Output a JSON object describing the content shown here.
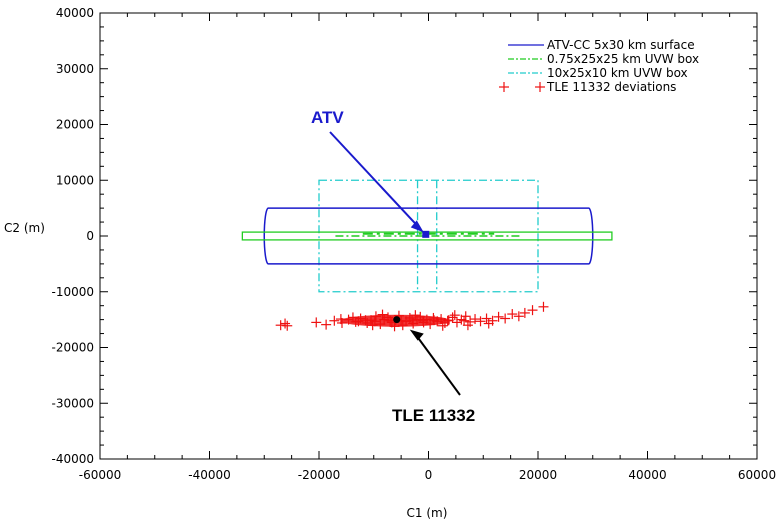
{
  "chart_data": {
    "type": "scatter",
    "title": "",
    "xlabel": "C1 (m)",
    "ylabel": "C2 (m)",
    "xlim": [
      -60000,
      60000
    ],
    "ylim": [
      -40000,
      40000
    ],
    "x_ticks": [
      -60000,
      -40000,
      -20000,
      0,
      20000,
      40000,
      60000
    ],
    "y_ticks": [
      -40000,
      -30000,
      -20000,
      -10000,
      0,
      10000,
      20000,
      30000,
      40000
    ],
    "x_tick_labels": [
      "-60000",
      "-40000",
      "-20000",
      "0",
      "20000",
      "40000",
      "60000"
    ],
    "y_tick_labels": [
      "-40000",
      "-30000",
      "-20000",
      "-10000",
      "0",
      "10000",
      "20000",
      "30000",
      "40000"
    ],
    "grid": false,
    "legend_position": "top-right",
    "series": [
      {
        "name": "ATV-CC 5x30 km surface",
        "style": "solid",
        "color": "#1a1acc",
        "shape": "rounded-rect",
        "x_range": [
          -30000,
          30000
        ],
        "y_range": [
          -5000,
          5000
        ]
      },
      {
        "name": "0.75x25x25 km UVW box",
        "style": "dash-dot",
        "color": "#22cc22",
        "shape": "rect",
        "x_range": [
          -34000,
          33500
        ],
        "y_range": [
          -700,
          700
        ]
      },
      {
        "name": "10x25x10 km UVW box",
        "style": "dash-dot",
        "color": "#22cccc",
        "shape": "rect",
        "x_range": [
          -20000,
          20000
        ],
        "y_range": [
          -10000,
          10000
        ],
        "inner_x": [
          -2000,
          1500
        ]
      },
      {
        "name": "TLE 11332 deviations",
        "style": "marker-plus",
        "color": "#ee1111",
        "points": [
          [
            -27000,
            -16000
          ],
          [
            -26200,
            -15700
          ],
          [
            -25800,
            -16100
          ],
          [
            -20500,
            -15500
          ],
          [
            -18700,
            -15900
          ],
          [
            -17200,
            -15200
          ],
          [
            -15800,
            -15600
          ],
          [
            -14600,
            -15000
          ],
          [
            -13300,
            -15400
          ],
          [
            -12400,
            -14800
          ],
          [
            -11200,
            -15600
          ],
          [
            -10500,
            -15100
          ],
          [
            -9600,
            -14400
          ],
          [
            -8800,
            -15800
          ],
          [
            -8100,
            -15000
          ],
          [
            -7400,
            -14600
          ],
          [
            -6700,
            -15500
          ],
          [
            -6000,
            -15100
          ],
          [
            -5400,
            -14300
          ],
          [
            -4700,
            -16000
          ],
          [
            -4100,
            -15300
          ],
          [
            -3400,
            -14700
          ],
          [
            -2800,
            -15700
          ],
          [
            -2100,
            -15000
          ],
          [
            -1500,
            -14500
          ],
          [
            -900,
            -15500
          ],
          [
            -300,
            -15000
          ],
          [
            300,
            -15800
          ],
          [
            900,
            -14700
          ],
          [
            1600,
            -15300
          ],
          [
            2300,
            -14900
          ],
          [
            3000,
            -15600
          ],
          [
            3700,
            -15100
          ],
          [
            4400,
            -14600
          ],
          [
            5200,
            -15500
          ],
          [
            6000,
            -15000
          ],
          [
            6800,
            -14400
          ],
          [
            7600,
            -15400
          ],
          [
            8500,
            -14900
          ],
          [
            9500,
            -15300
          ],
          [
            10600,
            -14800
          ],
          [
            11700,
            -15200
          ],
          [
            12800,
            -14500
          ],
          [
            14000,
            -14800
          ],
          [
            15300,
            -14000
          ],
          [
            16500,
            -14400
          ],
          [
            17600,
            -13800
          ],
          [
            19000,
            -13300
          ],
          [
            21000,
            -12700
          ],
          [
            -11500,
            -15100
          ],
          [
            -9800,
            -15300
          ],
          [
            -7000,
            -15200
          ],
          [
            -5000,
            -15200
          ],
          [
            -3000,
            -15100
          ],
          [
            -1000,
            -15200
          ],
          [
            1000,
            -15100
          ],
          [
            3500,
            -15200
          ],
          [
            6500,
            -15200
          ],
          [
            -12800,
            -15300
          ],
          [
            -8400,
            -14100
          ],
          [
            -2400,
            -14200
          ],
          [
            2600,
            -16100
          ],
          [
            7200,
            -16000
          ],
          [
            -6200,
            -16200
          ],
          [
            -10200,
            -16000
          ],
          [
            4800,
            -14200
          ],
          [
            -13800,
            -14600
          ],
          [
            11000,
            -15700
          ],
          [
            -16000,
            -14900
          ]
        ]
      }
    ],
    "highlight_points": [
      {
        "label": "ATV",
        "x": -500,
        "y": 300,
        "color": "#1a1acc"
      },
      {
        "label": "TLE 11332",
        "x": -5800,
        "y": -15000,
        "color": "#000000"
      }
    ],
    "annotations": [
      {
        "text": "ATV",
        "color": "#1a1acc"
      },
      {
        "text": "TLE 11332",
        "color": "#000000"
      }
    ]
  }
}
